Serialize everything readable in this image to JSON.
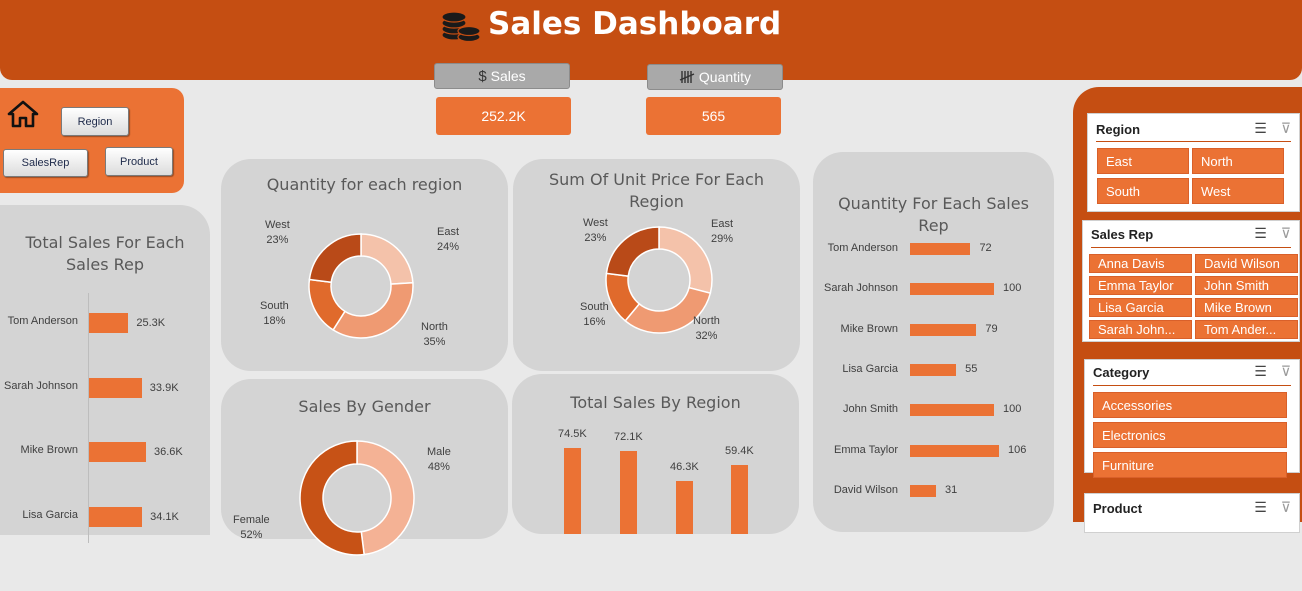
{
  "header": {
    "title": "Sales Dashboard",
    "icon": "coins-icon"
  },
  "kpis": {
    "sales": {
      "label": "Sales",
      "value": "252.2K",
      "icon": "dollar-icon"
    },
    "quantity": {
      "label": "Quantity",
      "value": "565",
      "icon": "tally-icon"
    }
  },
  "nav": {
    "home_icon": "home-icon",
    "region": "Region",
    "salesrep": "SalesRep",
    "product": "Product"
  },
  "colors": {
    "banner": "#c54e12",
    "accent": "#eb7234",
    "card": "#d4d4d4"
  },
  "charts": {
    "total_sales_rep": {
      "title": "Total Sales For Each Sales Rep",
      "chart_data": {
        "type": "bar",
        "categories": [
          "Tom Anderson",
          "Sarah Johnson",
          "Mike Brown",
          "Lisa Garcia"
        ],
        "values": [
          25.3,
          33.9,
          36.6,
          34.1
        ],
        "labels": [
          "25.3K",
          "33.9K",
          "36.6K",
          "34.1K"
        ]
      }
    },
    "qty_region": {
      "title": "Quantity for each region",
      "chart_data": {
        "type": "pie",
        "slices": [
          {
            "name": "East",
            "pct": "24%",
            "value": 24,
            "color": "#f4c2aa"
          },
          {
            "name": "North",
            "pct": "35%",
            "value": 35,
            "color": "#ef9a72"
          },
          {
            "name": "South",
            "pct": "18%",
            "value": 18,
            "color": "#e06a2c"
          },
          {
            "name": "West",
            "pct": "23%",
            "value": 23,
            "color": "#b94a18"
          }
        ]
      }
    },
    "unit_price": {
      "title": "Sum Of Unit Price For Each Region",
      "chart_data": {
        "type": "pie",
        "slices": [
          {
            "name": "East",
            "pct": "29%",
            "value": 29,
            "color": "#f4c2aa"
          },
          {
            "name": "North",
            "pct": "32%",
            "value": 32,
            "color": "#ef9a72"
          },
          {
            "name": "South",
            "pct": "16%",
            "value": 16,
            "color": "#e06a2c"
          },
          {
            "name": "West",
            "pct": "23%",
            "value": 23,
            "color": "#b94a18"
          }
        ]
      }
    },
    "qty_sales_rep": {
      "title": "Quantity For Each Sales Rep",
      "chart_data": {
        "type": "bar",
        "categories": [
          "Tom Anderson",
          "Sarah Johnson",
          "Mike Brown",
          "Lisa Garcia",
          "John Smith",
          "Emma Taylor",
          "David Wilson"
        ],
        "values": [
          72,
          100,
          79,
          55,
          100,
          106,
          31
        ],
        "labels": [
          "72",
          "100",
          "79",
          "55",
          "100",
          "106",
          "31"
        ]
      }
    },
    "gender": {
      "title": "Sales By Gender",
      "chart_data": {
        "type": "pie",
        "slices": [
          {
            "name": "Male",
            "pct": "48%",
            "value": 48,
            "color": "#f4b295"
          },
          {
            "name": "Female",
            "pct": "52%",
            "value": 52,
            "color": "#c75216"
          }
        ]
      }
    },
    "sales_region": {
      "title": "Total Sales By Region",
      "chart_data": {
        "type": "bar",
        "values": [
          74.5,
          72.1,
          46.3,
          59.4
        ],
        "labels": [
          "74.5K",
          "72.1K",
          "46.3K",
          "59.4K"
        ]
      }
    }
  },
  "slicers": {
    "region": {
      "title": "Region",
      "items": [
        "East",
        "North",
        "South",
        "West"
      ]
    },
    "sales_rep": {
      "title": "Sales Rep",
      "items": [
        "Anna Davis",
        "David Wilson",
        "Emma Taylor",
        "John Smith",
        "Lisa Garcia",
        "Mike Brown",
        "Sarah John...",
        "Tom Ander..."
      ]
    },
    "category": {
      "title": "Category",
      "items": [
        "Accessories",
        "Electronics",
        "Furniture"
      ]
    },
    "product": {
      "title": "Product"
    }
  }
}
